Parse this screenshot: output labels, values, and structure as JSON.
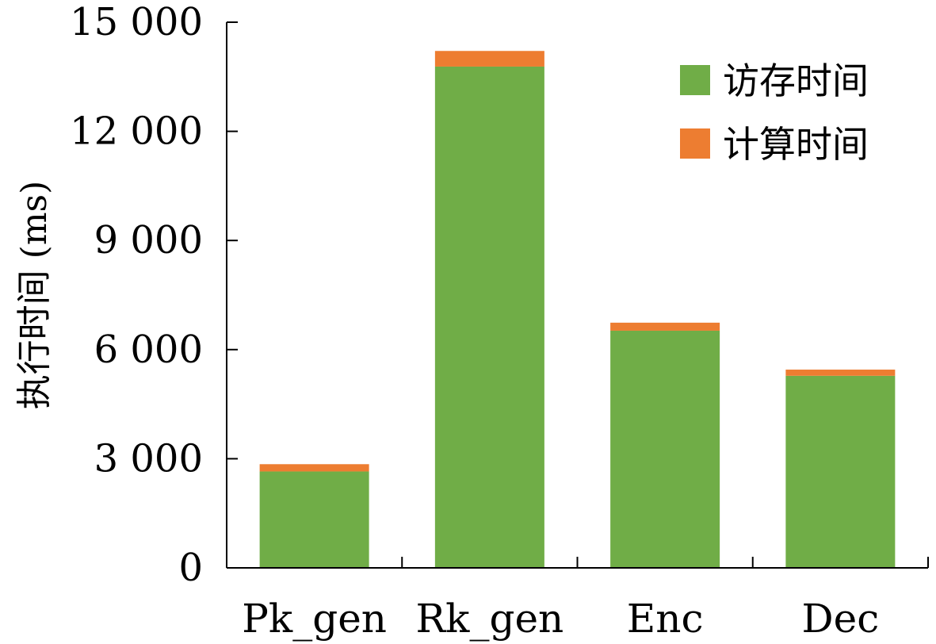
{
  "chart_data": {
    "type": "bar",
    "stacked": true,
    "categories": [
      "Pk_gen",
      "Rk_gen",
      "Enc",
      "Dec"
    ],
    "series": [
      {
        "name": "访存时间",
        "color": "#70ad47",
        "values": [
          2650,
          13780,
          6520,
          5280
        ]
      },
      {
        "name": "计算时间",
        "color": "#ed7d31",
        "values": [
          200,
          430,
          220,
          170
        ]
      }
    ],
    "ylabel": "执行时间 (ms)",
    "ylim": [
      0,
      15000
    ],
    "yticks": [
      0,
      3000,
      6000,
      9000,
      12000,
      15000
    ],
    "ytick_labels": [
      "0",
      "3 000",
      "6 000",
      "9 000",
      "12 000",
      "15 000"
    ],
    "grid": false,
    "legend_position": "top-right"
  }
}
